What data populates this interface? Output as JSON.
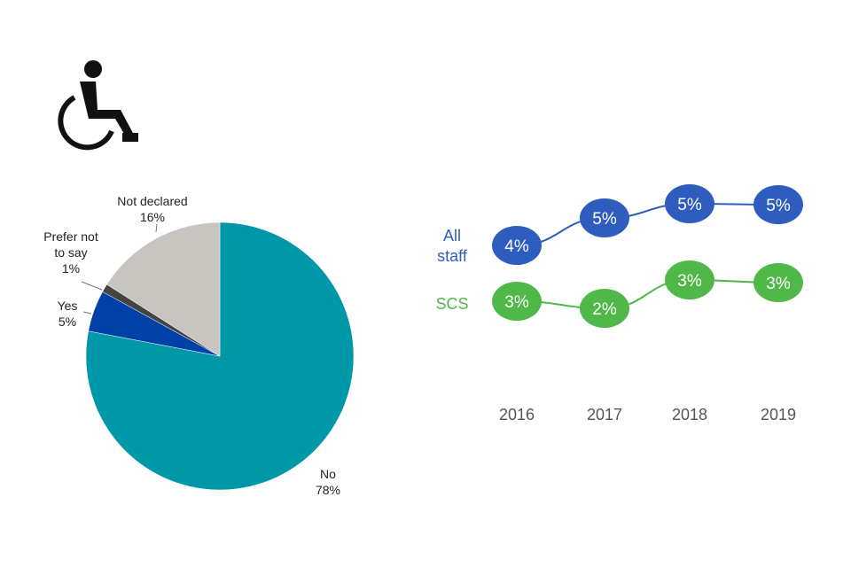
{
  "icon": {
    "name": "wheelchair-icon",
    "color": "#111111"
  },
  "chart_data": [
    {
      "type": "pie",
      "slices": [
        {
          "name": "No",
          "label_lines": [
            "No",
            "78%"
          ],
          "value": 78,
          "color": "#0097a9"
        },
        {
          "name": "Yes",
          "label_lines": [
            "Yes",
            "5%"
          ],
          "value": 5,
          "color": "#0041a8"
        },
        {
          "name": "Prefer not to say",
          "label_lines": [
            "Prefer not",
            "to say",
            "1%"
          ],
          "value": 1,
          "color": "#444444"
        },
        {
          "name": "Not declared",
          "label_lines": [
            "Not declared",
            "16%"
          ],
          "value": 16,
          "color": "#c8c4bf"
        }
      ]
    },
    {
      "type": "line",
      "x": [
        "2016",
        "2017",
        "2018",
        "2019"
      ],
      "series": [
        {
          "name_lines": [
            "All",
            "staff"
          ],
          "values": [
            4,
            5,
            5,
            5
          ],
          "labels": [
            "4%",
            "5%",
            "5%",
            "5%"
          ],
          "color": "#2e5dbf",
          "bubble_color": "#2e5dbf"
        },
        {
          "name_lines": [
            "SCS"
          ],
          "values": [
            3,
            2,
            3,
            3
          ],
          "labels": [
            "3%",
            "2%",
            "3%",
            "3%"
          ],
          "color": "#50b848",
          "bubble_color": "#50b848"
        }
      ]
    }
  ]
}
